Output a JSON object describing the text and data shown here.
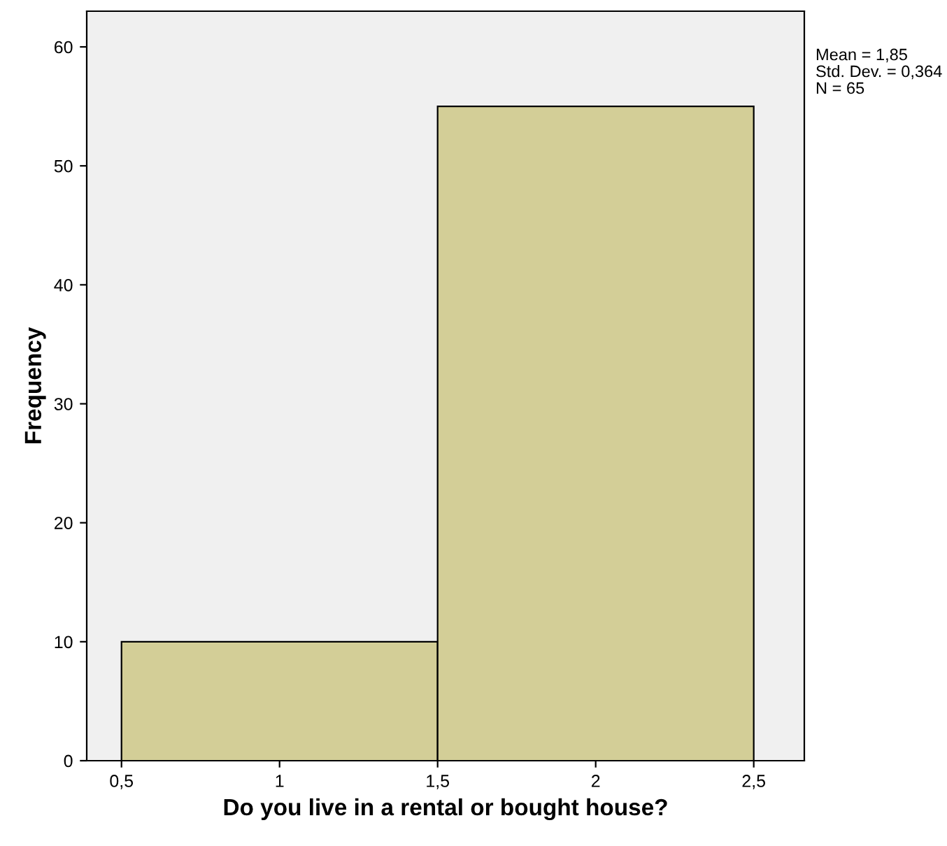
{
  "chart_data": {
    "type": "histogram",
    "xlabel": "Do you live in a rental or bought house?",
    "ylabel": "Frequency",
    "bins": [
      0.5,
      1.5,
      2.5
    ],
    "values": [
      10,
      55
    ],
    "color": "#d3ce97",
    "xlim": [
      0.39,
      2.66
    ],
    "xticks": [
      {
        "value": 0.5,
        "label": "0,5"
      },
      1,
      {
        "value": 1.5,
        "label": "1,5"
      },
      2,
      {
        "value": 2.5,
        "label": "2,5"
      }
    ],
    "ylim": [
      0,
      63
    ],
    "yticks": [
      0,
      10,
      20,
      30,
      40,
      50,
      60
    ],
    "annotations": [
      "Mean = 1,85",
      "Std. Dev. = 0,364",
      "N = 65"
    ],
    "grid": false
  }
}
